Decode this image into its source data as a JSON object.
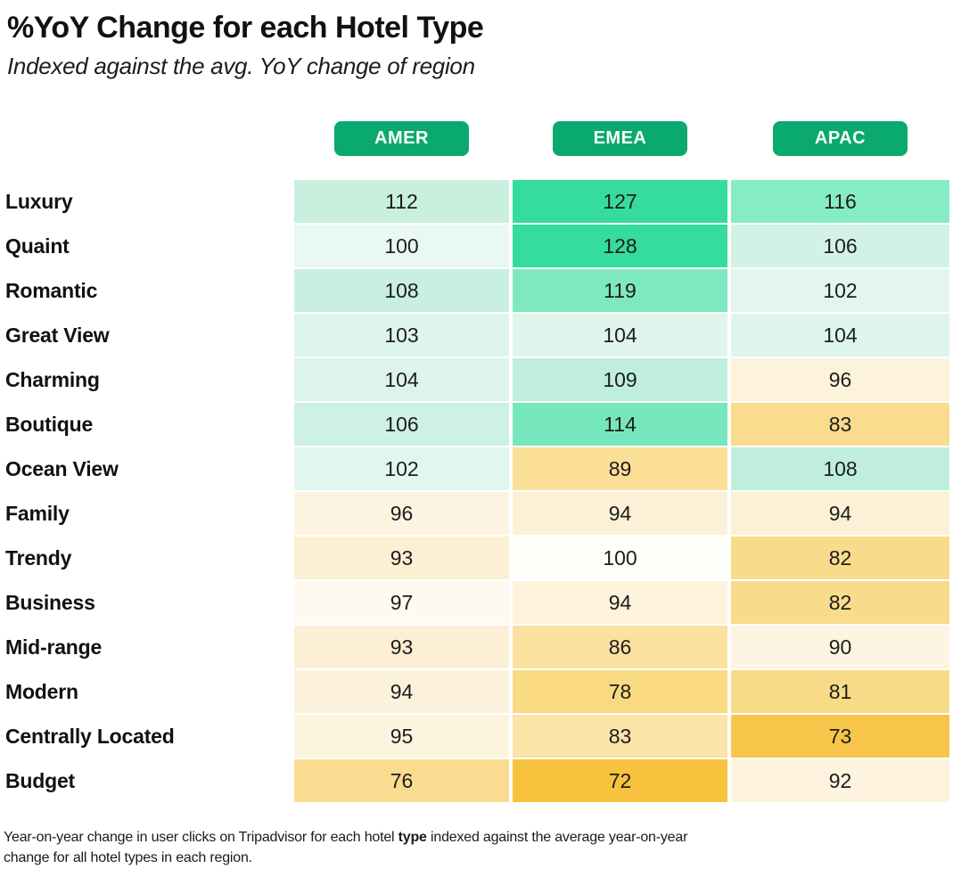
{
  "header": {
    "title": "%YoY Change for each Hotel Type",
    "subtitle": "Indexed against the avg. YoY change of region"
  },
  "accent": {
    "badge_green": "#0aa96e",
    "badge_text_color": "#ffffff",
    "high_color": "#35dc9e",
    "low_color": "#f7c33e",
    "midpoint_color": "#fffefb"
  },
  "chart_data": {
    "type": "heatmap",
    "title": "%YoY Change for each Hotel Type",
    "subtitle": "Indexed against the avg. YoY change of region",
    "columns": [
      "AMER",
      "EMEA",
      "APAC"
    ],
    "value_midpoint": 100,
    "value_range": [
      72,
      128
    ],
    "rows": [
      {
        "label": "Luxury",
        "values": [
          112,
          127,
          116
        ],
        "colors": [
          "#c9efdf",
          "#35dc9e",
          "#85ecc6"
        ]
      },
      {
        "label": "Quaint",
        "values": [
          100,
          128,
          106
        ],
        "colors": [
          "#e9f8f2",
          "#35dc9e",
          "#d2f2e6"
        ]
      },
      {
        "label": "Romantic",
        "values": [
          108,
          119,
          102
        ],
        "colors": [
          "#c9efe0",
          "#7ee9c1",
          "#e2f6ee"
        ]
      },
      {
        "label": "Great View",
        "values": [
          103,
          104,
          104
        ],
        "colors": [
          "#def5ec",
          "#e0f6ed",
          "#def5ec"
        ]
      },
      {
        "label": "Charming",
        "values": [
          104,
          109,
          96
        ],
        "colors": [
          "#dcf4ea",
          "#bfeedd",
          "#fdf2dc"
        ]
      },
      {
        "label": "Boutique",
        "values": [
          106,
          114,
          83
        ],
        "colors": [
          "#cdf1e2",
          "#76e7bc",
          "#f9dc8e"
        ]
      },
      {
        "label": "Ocean View",
        "values": [
          102,
          89,
          108
        ],
        "colors": [
          "#e1f6ee",
          "#fbdf96",
          "#c0eedd"
        ]
      },
      {
        "label": "Family",
        "values": [
          96,
          94,
          94
        ],
        "colors": [
          "#fdf3e1",
          "#fcf0d6",
          "#fcf0d6"
        ]
      },
      {
        "label": "Trendy",
        "values": [
          93,
          100,
          82
        ],
        "colors": [
          "#fcefd3",
          "#fefefb",
          "#f8dc8c"
        ]
      },
      {
        "label": "Business",
        "values": [
          97,
          94,
          82
        ],
        "colors": [
          "#fefaf0",
          "#fdf2db",
          "#f8dc8c"
        ]
      },
      {
        "label": "Mid-range",
        "values": [
          93,
          86,
          90
        ],
        "colors": [
          "#fcefd3",
          "#fbe1a0",
          "#fdf4e2"
        ]
      },
      {
        "label": "Modern",
        "values": [
          94,
          78,
          81
        ],
        "colors": [
          "#fcf2dc",
          "#f9da82",
          "#f8db88"
        ]
      },
      {
        "label": "Centrally Located",
        "values": [
          95,
          83,
          73
        ],
        "colors": [
          "#fdf4e0",
          "#fbe4a8",
          "#f7c549"
        ]
      },
      {
        "label": "Budget",
        "values": [
          76,
          72,
          92
        ],
        "colors": [
          "#f9dc8f",
          "#f7c33e",
          "#fdf3df"
        ]
      }
    ]
  },
  "footnote": {
    "line1_before_bold": "Year-on-year change in user clicks on Tripadvisor for each hotel ",
    "bold_word": "type",
    "line1_after_bold": " indexed against the average year-on-year",
    "line2": "change for all hotel types in each region."
  }
}
